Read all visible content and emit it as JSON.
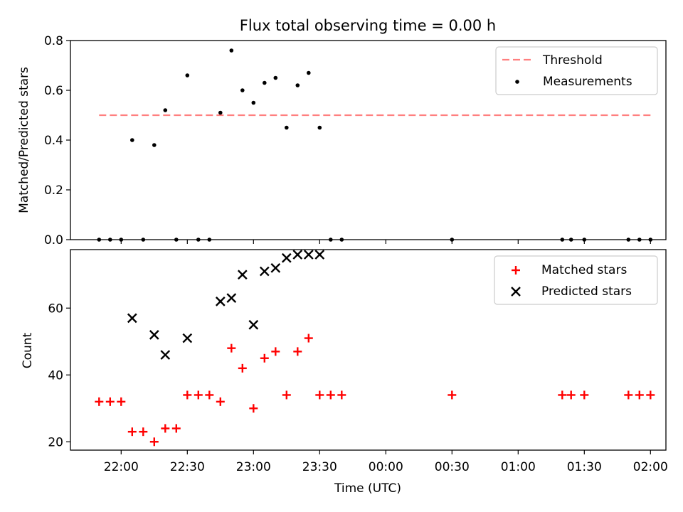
{
  "title": "Flux total observing time = 0.00 h",
  "chart_data": [
    {
      "type": "scatter",
      "ylabel": "Matched/Predicted stars",
      "ylim": [
        0,
        0.8
      ],
      "yticks": [
        "0.0",
        "0.2",
        "0.4",
        "0.6",
        "0.8"
      ],
      "threshold": {
        "name": "Threshold",
        "value": 0.5,
        "x_range": [
          "21:50",
          "02:00"
        ],
        "color": "#ff7f7f"
      },
      "legend": [
        "Threshold",
        "Measurements"
      ],
      "legend_position": "top-right",
      "series": [
        {
          "name": "Measurements",
          "x": [
            "21:50",
            "21:55",
            "22:00",
            "22:05",
            "22:10",
            "22:15",
            "22:20",
            "22:25",
            "22:30",
            "22:35",
            "22:40",
            "22:45",
            "22:50",
            "22:55",
            "23:00",
            "23:05",
            "23:10",
            "23:15",
            "23:20",
            "23:25",
            "23:30",
            "23:35",
            "23:40",
            "00:30",
            "01:20",
            "01:24",
            "01:30",
            "01:50",
            "01:55",
            "02:00"
          ],
          "y": [
            0,
            0,
            0,
            0.4,
            0,
            0.38,
            0.52,
            0,
            0.66,
            0,
            0,
            0.51,
            0.76,
            0.6,
            0.55,
            0.63,
            0.65,
            0.45,
            0.62,
            0.67,
            0.45,
            0,
            0,
            0,
            0,
            0,
            0,
            0,
            0,
            0
          ]
        }
      ]
    },
    {
      "type": "scatter",
      "xlabel": "Time (UTC)",
      "ylabel": "Count",
      "ylim": [
        17.5,
        77.5
      ],
      "yticks": [
        "20",
        "40",
        "60"
      ],
      "xlim": [
        "21:37",
        "02:07"
      ],
      "xticks": [
        "22:00",
        "22:30",
        "23:00",
        "23:30",
        "00:00",
        "00:30",
        "01:00",
        "01:30",
        "02:00"
      ],
      "legend": [
        "Matched stars",
        "Predicted stars"
      ],
      "legend_position": "top-right",
      "series": [
        {
          "name": "Matched stars",
          "color": "#ff0000",
          "x": [
            "21:50",
            "21:55",
            "22:00",
            "22:05",
            "22:10",
            "22:15",
            "22:20",
            "22:25",
            "22:30",
            "22:35",
            "22:40",
            "22:45",
            "22:50",
            "22:55",
            "23:00",
            "23:05",
            "23:10",
            "23:15",
            "23:20",
            "23:25",
            "23:30",
            "23:35",
            "23:40",
            "00:30",
            "01:20",
            "01:24",
            "01:30",
            "01:50",
            "01:55",
            "02:00"
          ],
          "y": [
            32,
            32,
            32,
            23,
            23,
            20,
            24,
            24,
            34,
            34,
            34,
            32,
            48,
            42,
            30,
            45,
            47,
            34,
            47,
            51,
            34,
            34,
            34,
            34,
            34,
            34,
            34,
            34,
            34,
            34
          ]
        },
        {
          "name": "Predicted stars",
          "color": "#000000",
          "x": [
            "22:05",
            "22:15",
            "22:20",
            "22:30",
            "22:45",
            "22:50",
            "22:55",
            "23:00",
            "23:05",
            "23:10",
            "23:15",
            "23:20",
            "23:25",
            "23:30"
          ],
          "y": [
            57,
            52,
            46,
            51,
            62,
            63,
            70,
            55,
            71,
            72,
            75,
            76,
            76,
            76
          ]
        }
      ]
    }
  ]
}
